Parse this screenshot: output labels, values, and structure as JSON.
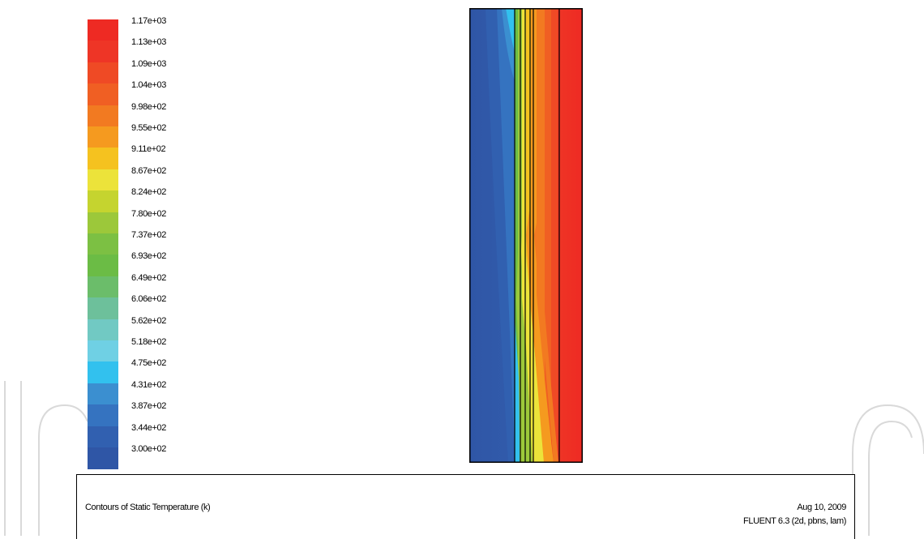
{
  "colorbar": {
    "levels": [
      {
        "label": "1.17e+03",
        "color": "#ee2a23"
      },
      {
        "label": "1.13e+03",
        "color": "#ee3526"
      },
      {
        "label": "1.09e+03",
        "color": "#ef4a25"
      },
      {
        "label": "1.04e+03",
        "color": "#f05f23"
      },
      {
        "label": "9.98e+02",
        "color": "#f27a21"
      },
      {
        "label": "9.55e+02",
        "color": "#f59a1f"
      },
      {
        "label": "9.11e+02",
        "color": "#f5c21f"
      },
      {
        "label": "8.67e+02",
        "color": "#ece33a"
      },
      {
        "label": "8.24e+02",
        "color": "#c5d42f"
      },
      {
        "label": "7.80e+02",
        "color": "#9cc83a"
      },
      {
        "label": "7.37e+02",
        "color": "#7cc043"
      },
      {
        "label": "6.93e+02",
        "color": "#6bbc45"
      },
      {
        "label": "6.49e+02",
        "color": "#6bbd6a"
      },
      {
        "label": "6.06e+02",
        "color": "#6dc09b"
      },
      {
        "label": "5.62e+02",
        "color": "#71c9c3"
      },
      {
        "label": "5.18e+02",
        "color": "#6fd0e4"
      },
      {
        "label": "4.75e+02",
        "color": "#32c1ee"
      },
      {
        "label": "4.31e+02",
        "color": "#3b8fd0"
      },
      {
        "label": "3.87e+02",
        "color": "#3573c0"
      },
      {
        "label": "3.44e+02",
        "color": "#3160b0"
      },
      {
        "label": "3.00e+02",
        "color": "#2f56a6"
      }
    ]
  },
  "plot": {
    "title": "Contours of Static Temperature (k)",
    "date": "Aug 10, 2009",
    "solver": "FLUENT 6.3 (2d, pbns, lam)"
  },
  "colors": {
    "cold": "#2f56a6",
    "hot": "#ee2a23",
    "border": "#000000",
    "watermark": "#d9d9d9"
  }
}
